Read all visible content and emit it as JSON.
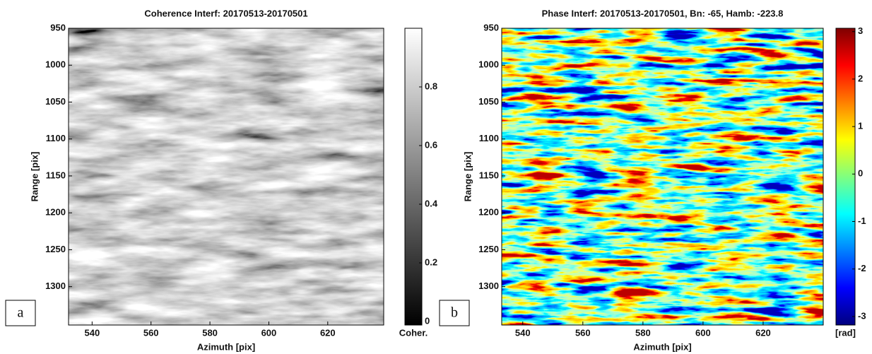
{
  "chart_data": [
    {
      "type": "heatmap",
      "panel_label": "a",
      "title": "Coherence Interf: 20170513-20170501",
      "xlabel": "Azimuth [pix]",
      "ylabel": "Range [pix]",
      "xlim": [
        532,
        639
      ],
      "xticks": [
        540,
        560,
        580,
        600,
        620
      ],
      "ylim": [
        1352,
        950
      ],
      "yticks": [
        950,
        1000,
        1050,
        1100,
        1150,
        1200,
        1250,
        1300
      ],
      "colormap": "gray",
      "colorbar": {
        "label": "Coher.",
        "lim": [
          -0.012,
          1
        ],
        "ticks": [
          0,
          0.2,
          0.4,
          0.6,
          0.8
        ]
      }
    },
    {
      "type": "heatmap",
      "panel_label": "b",
      "title": "Phase Interf: 20170513-20170501, Bn: -65, Hamb: -223.8",
      "xlabel": "Azimuth [pix]",
      "ylabel": "Range [pix]",
      "xlim": [
        533,
        640
      ],
      "xticks": [
        540,
        560,
        580,
        600,
        620
      ],
      "ylim": [
        1352,
        950
      ],
      "yticks": [
        950,
        1000,
        1050,
        1100,
        1150,
        1200,
        1250,
        1300
      ],
      "colormap": "jet",
      "colorbar": {
        "label": "[rad]",
        "lim": [
          -3.18,
          3.07
        ],
        "ticks": [
          -3,
          -2,
          -1,
          0,
          1,
          2,
          3
        ]
      }
    }
  ]
}
